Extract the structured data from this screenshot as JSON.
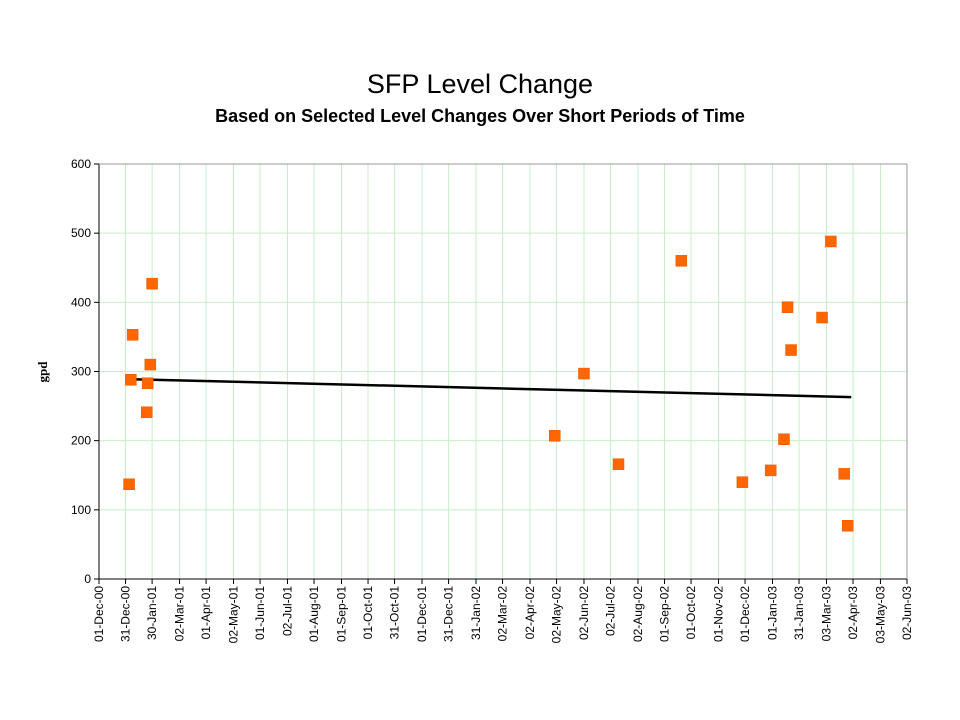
{
  "chart_data": {
    "type": "scatter",
    "title": "SFP Level Change",
    "subtitle": "Based on Selected Level Changes Over Short Periods of Time",
    "xlabel": "",
    "ylabel": "gpd",
    "ylim": [
      0,
      600
    ],
    "y_ticks": [
      "0",
      "100",
      "200",
      "300",
      "400",
      "500",
      "600"
    ],
    "x_axis_type": "date",
    "xlim": [
      "2000-12-01",
      "2003-06-02"
    ],
    "x_ticks": [
      {
        "date": "2000-12-01",
        "label": "01-Dec-00"
      },
      {
        "date": "2000-12-31",
        "label": "31-Dec-00"
      },
      {
        "date": "2001-01-30",
        "label": "30-Jan-01"
      },
      {
        "date": "2001-03-02",
        "label": "02-Mar-01"
      },
      {
        "date": "2001-04-01",
        "label": "01-Apr-01"
      },
      {
        "date": "2001-05-02",
        "label": "02-May-01"
      },
      {
        "date": "2001-06-01",
        "label": "01-Jun-01"
      },
      {
        "date": "2001-07-02",
        "label": "02-Jul-01"
      },
      {
        "date": "2001-08-01",
        "label": "01-Aug-01"
      },
      {
        "date": "2001-09-01",
        "label": "01-Sep-01"
      },
      {
        "date": "2001-10-01",
        "label": "01-Oct-01"
      },
      {
        "date": "2001-10-31",
        "label": "31-Oct-01"
      },
      {
        "date": "2001-12-01",
        "label": "01-Dec-01"
      },
      {
        "date": "2001-12-31",
        "label": "31-Dec-01"
      },
      {
        "date": "2002-01-31",
        "label": "31-Jan-02"
      },
      {
        "date": "2002-03-02",
        "label": "02-Mar-02"
      },
      {
        "date": "2002-04-02",
        "label": "02-Apr-02"
      },
      {
        "date": "2002-05-02",
        "label": "02-May-02"
      },
      {
        "date": "2002-06-02",
        "label": "02-Jun-02"
      },
      {
        "date": "2002-07-02",
        "label": "02-Jul-02"
      },
      {
        "date": "2002-08-02",
        "label": "02-Aug-02"
      },
      {
        "date": "2002-09-01",
        "label": "01-Sep-02"
      },
      {
        "date": "2002-10-01",
        "label": "01-Oct-02"
      },
      {
        "date": "2002-11-01",
        "label": "01-Nov-02"
      },
      {
        "date": "2002-12-01",
        "label": "01-Dec-02"
      },
      {
        "date": "2003-01-01",
        "label": "01-Jan-03"
      },
      {
        "date": "2003-01-31",
        "label": "31-Jan-03"
      },
      {
        "date": "2003-03-03",
        "label": "03-Mar-03"
      },
      {
        "date": "2003-04-02",
        "label": "02-Apr-03"
      },
      {
        "date": "2003-05-03",
        "label": "03-May-03"
      },
      {
        "date": "2003-06-02",
        "label": "02-Jun-03"
      }
    ],
    "grid": true,
    "grid_color": "#c8eec8",
    "series": [
      {
        "marker": "square",
        "color": "#ff6600",
        "points": [
          {
            "x": "2001-01-04",
            "y": 137
          },
          {
            "x": "2001-01-06",
            "y": 288
          },
          {
            "x": "2001-01-08",
            "y": 353
          },
          {
            "x": "2001-01-24",
            "y": 241
          },
          {
            "x": "2001-01-25",
            "y": 283
          },
          {
            "x": "2001-01-28",
            "y": 310
          },
          {
            "x": "2001-01-30",
            "y": 427
          },
          {
            "x": "2002-04-30",
            "y": 207
          },
          {
            "x": "2002-06-02",
            "y": 297
          },
          {
            "x": "2002-07-11",
            "y": 166
          },
          {
            "x": "2002-09-20",
            "y": 460
          },
          {
            "x": "2002-11-28",
            "y": 140
          },
          {
            "x": "2002-12-30",
            "y": 157
          },
          {
            "x": "2003-01-14",
            "y": 202
          },
          {
            "x": "2003-01-18",
            "y": 393
          },
          {
            "x": "2003-01-22",
            "y": 331
          },
          {
            "x": "2003-02-26",
            "y": 378
          },
          {
            "x": "2003-03-08",
            "y": 488
          },
          {
            "x": "2003-03-23",
            "y": 152
          },
          {
            "x": "2003-03-27",
            "y": 77
          }
        ]
      }
    ],
    "trendline": {
      "type": "linear",
      "color": "#000000",
      "x": [
        "2001-01-01",
        "2003-03-31"
      ],
      "y": [
        289,
        263
      ]
    }
  }
}
